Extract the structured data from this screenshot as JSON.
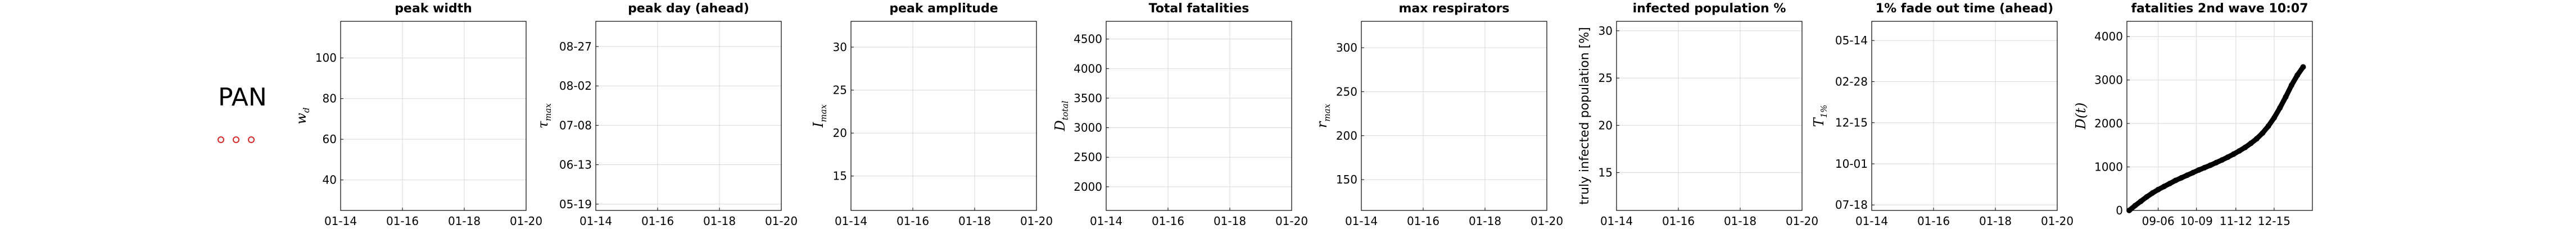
{
  "country": {
    "code": "PAN",
    "marker_color": "#d62728"
  },
  "chart_data": [
    {
      "type": "scatter",
      "title": "peak width",
      "ylabel": "w_d",
      "x_ticks": [
        "01-14",
        "01-16",
        "01-18",
        "01-20"
      ],
      "y_ticks": [
        "40",
        "60",
        "80",
        "100"
      ],
      "y_tick_values": [
        40,
        60,
        80,
        100
      ],
      "ylim": [
        25,
        118
      ],
      "grid": true,
      "series": []
    },
    {
      "type": "scatter",
      "title": "peak day (ahead)",
      "ylabel": "τ_max",
      "x_ticks": [
        "01-14",
        "01-16",
        "01-18",
        "01-20"
      ],
      "y_ticks": [
        "05-19",
        "06-13",
        "07-08",
        "08-02",
        "08-27"
      ],
      "y_tick_values": [
        0,
        25,
        50,
        75,
        100
      ],
      "ylim": [
        -4,
        116
      ],
      "grid": true,
      "series": []
    },
    {
      "type": "scatter",
      "title": "peak amplitude",
      "ylabel": "I_max",
      "x_ticks": [
        "01-14",
        "01-16",
        "01-18",
        "01-20"
      ],
      "y_ticks": [
        "15",
        "20",
        "25",
        "30"
      ],
      "y_tick_values": [
        15,
        20,
        25,
        30
      ],
      "ylim": [
        11,
        33
      ],
      "grid": true,
      "series": []
    },
    {
      "type": "scatter",
      "title": "Total fatalities",
      "ylabel": "D_total",
      "x_ticks": [
        "01-14",
        "01-16",
        "01-18",
        "01-20"
      ],
      "y_ticks": [
        "2000",
        "2500",
        "3000",
        "3500",
        "4000",
        "4500"
      ],
      "y_tick_values": [
        2000,
        2500,
        3000,
        3500,
        4000,
        4500
      ],
      "ylim": [
        1600,
        4800
      ],
      "grid": true,
      "series": []
    },
    {
      "type": "scatter",
      "title": "max respirators",
      "ylabel": "r_max",
      "x_ticks": [
        "01-14",
        "01-16",
        "01-18",
        "01-20"
      ],
      "y_ticks": [
        "150",
        "200",
        "250",
        "300"
      ],
      "y_tick_values": [
        150,
        200,
        250,
        300
      ],
      "ylim": [
        115,
        330
      ],
      "grid": true,
      "series": []
    },
    {
      "type": "scatter",
      "title": "infected population %",
      "ylabel": "truly infected population [%]",
      "x_ticks": [
        "01-14",
        "01-16",
        "01-18",
        "01-20"
      ],
      "y_ticks": [
        "15",
        "20",
        "25",
        "30"
      ],
      "y_tick_values": [
        15,
        20,
        25,
        30
      ],
      "ylim": [
        11,
        31
      ],
      "grid": true,
      "series": []
    },
    {
      "type": "scatter",
      "title": "1% fade out time (ahead)",
      "ylabel": "T_1%",
      "x_ticks": [
        "01-14",
        "01-16",
        "01-18",
        "01-20"
      ],
      "y_ticks": [
        "07-18",
        "10-01",
        "12-15",
        "02-28",
        "05-14"
      ],
      "y_tick_values": [
        0,
        75,
        150,
        225,
        300
      ],
      "ylim": [
        -10,
        335
      ],
      "grid": true,
      "series": []
    },
    {
      "type": "line",
      "title": "fatalities 2nd wave 10:07",
      "ylabel": "D(t)",
      "x_ticks": [
        "09-06",
        "10-09",
        "11-12",
        "12-15"
      ],
      "x_tick_values": [
        0,
        33,
        67,
        100
      ],
      "xlim": [
        -27,
        133
      ],
      "y_ticks": [
        "0",
        "1000",
        "2000",
        "3000",
        "4000"
      ],
      "y_tick_values": [
        0,
        1000,
        2000,
        3000,
        4000
      ],
      "ylim": [
        0,
        4350
      ],
      "grid": true,
      "series": [
        {
          "x": [
            -25,
            -20,
            -15,
            -10,
            -5,
            0,
            5,
            10,
            15,
            20,
            25,
            30,
            35,
            40,
            45,
            50,
            55,
            60,
            65,
            70,
            75,
            80,
            85,
            90,
            95,
            100,
            105,
            110,
            115,
            120,
            125
          ],
          "values": [
            0,
            110,
            210,
            310,
            400,
            480,
            550,
            620,
            690,
            750,
            810,
            870,
            930,
            985,
            1040,
            1100,
            1160,
            1225,
            1295,
            1370,
            1450,
            1545,
            1650,
            1780,
            1940,
            2130,
            2360,
            2610,
            2880,
            3110,
            3300
          ]
        }
      ]
    }
  ]
}
